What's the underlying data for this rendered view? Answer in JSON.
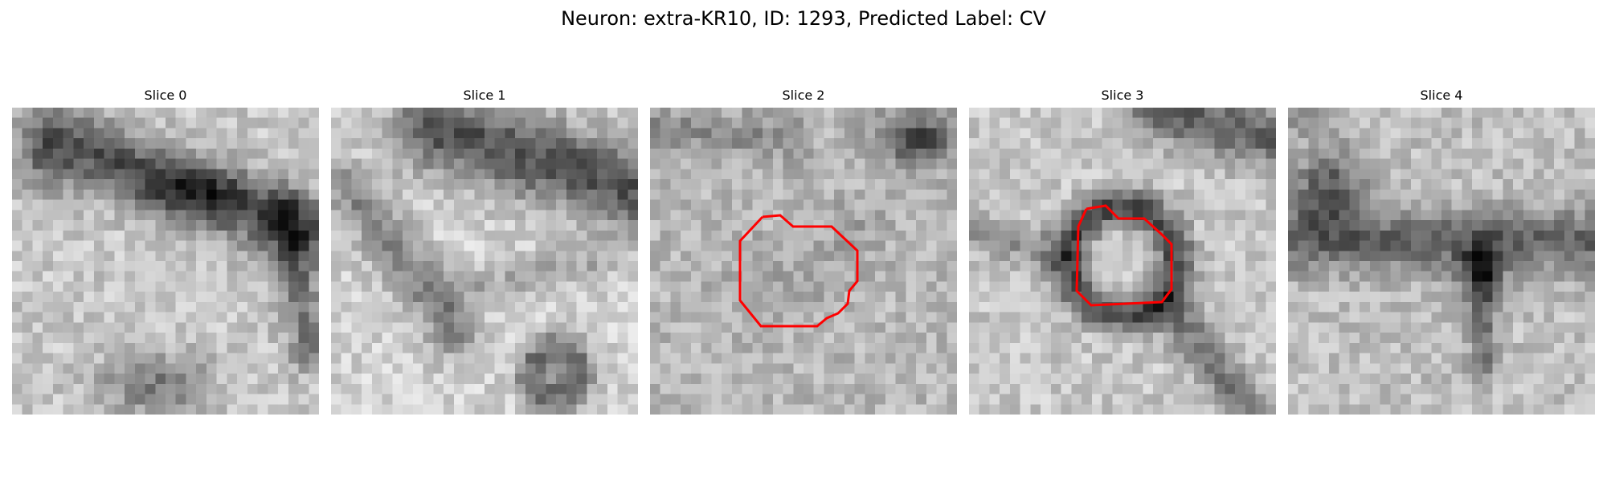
{
  "figure": {
    "title": "Neuron: extra-KR10, ID: 1293, Predicted Label: CV"
  },
  "colors": {
    "background": "#ffffff",
    "text": "#000000",
    "contour": "#ff0000",
    "colormap": "grayscale"
  },
  "panels": [
    {
      "title": "Slice 0",
      "contour": false
    },
    {
      "title": "Slice 1",
      "contour": false
    },
    {
      "title": "Slice 2",
      "contour": true
    },
    {
      "title": "Slice 3",
      "contour": true
    },
    {
      "title": "Slice 4",
      "contour": false
    }
  ]
}
